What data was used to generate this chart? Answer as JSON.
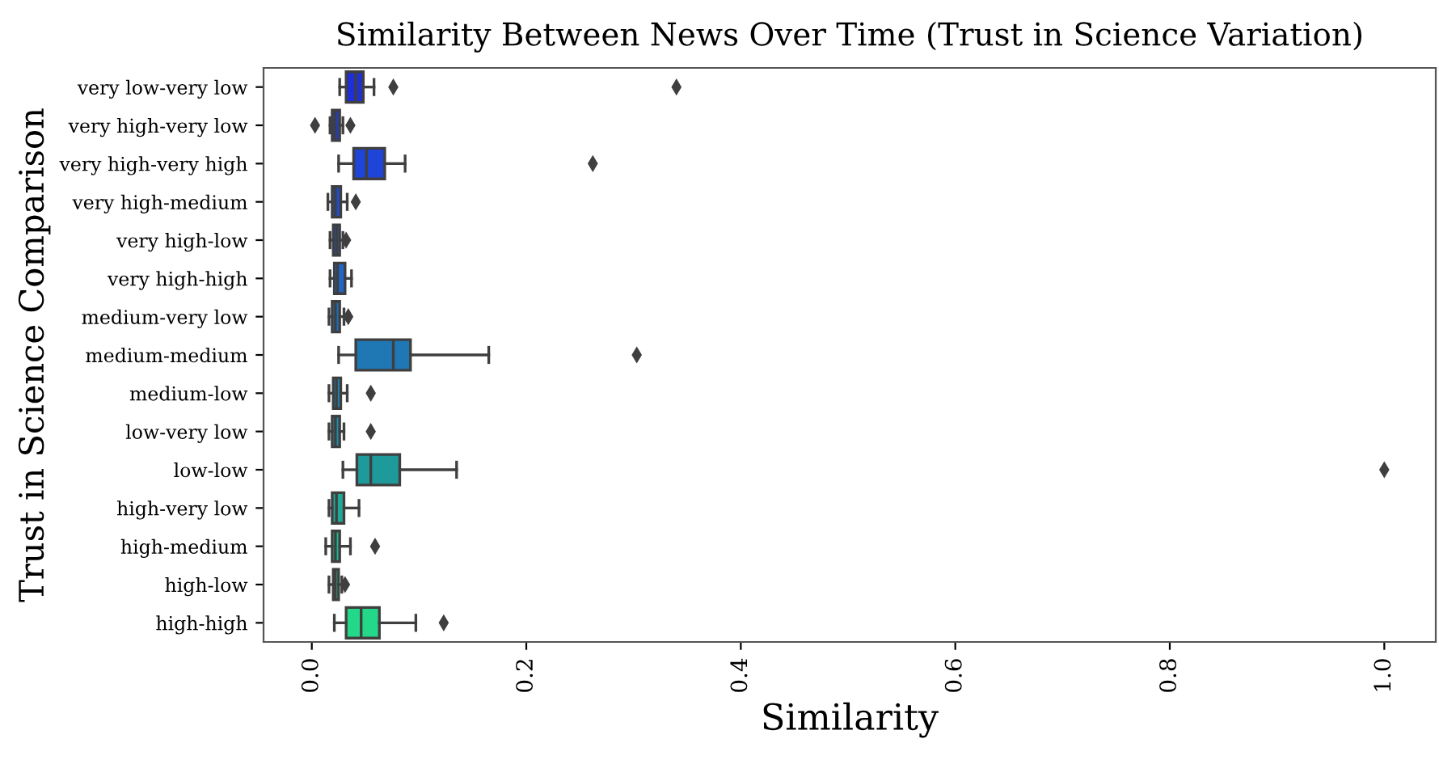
{
  "chart_data": {
    "type": "box",
    "title": "Similarity Between News Over Time (Trust in Science Variation)",
    "xlabel": "Similarity",
    "ylabel": "Trust in Science Comparison",
    "orientation": "horizontal",
    "categories": [
      "very low-very low",
      "very high-very low",
      "very high-very high",
      "very high-medium",
      "very high-low",
      "very high-high",
      "medium-very low",
      "medium-medium",
      "medium-low",
      "low-very low",
      "low-low",
      "high-very low",
      "high-medium",
      "high-low",
      "high-high"
    ],
    "boxes": [
      {
        "low": 0.026,
        "q1": 0.032,
        "median": 0.041,
        "q3": 0.048,
        "high": 0.058,
        "outliers": [
          0.076,
          0.34
        ]
      },
      {
        "low": 0.017,
        "q1": 0.019,
        "median": 0.022,
        "q3": 0.026,
        "high": 0.029,
        "outliers": [
          0.003,
          0.036
        ]
      },
      {
        "low": 0.025,
        "q1": 0.039,
        "median": 0.051,
        "q3": 0.068,
        "high": 0.087,
        "outliers": [
          0.262
        ]
      },
      {
        "low": 0.015,
        "q1": 0.019,
        "median": 0.022,
        "q3": 0.027,
        "high": 0.033,
        "outliers": [
          0.041
        ]
      },
      {
        "low": 0.017,
        "q1": 0.02,
        "median": 0.023,
        "q3": 0.026,
        "high": 0.029,
        "outliers": [
          0.032
        ]
      },
      {
        "low": 0.017,
        "q1": 0.021,
        "median": 0.024,
        "q3": 0.031,
        "high": 0.037
      },
      {
        "low": 0.016,
        "q1": 0.019,
        "median": 0.022,
        "q3": 0.026,
        "high": 0.03,
        "outliers": [
          0.034
        ]
      },
      {
        "low": 0.025,
        "q1": 0.041,
        "median": 0.076,
        "q3": 0.092,
        "high": 0.165,
        "outliers": [
          0.303
        ]
      },
      {
        "low": 0.016,
        "q1": 0.02,
        "median": 0.023,
        "q3": 0.027,
        "high": 0.033,
        "outliers": [
          0.055
        ]
      },
      {
        "low": 0.016,
        "q1": 0.019,
        "median": 0.022,
        "q3": 0.026,
        "high": 0.03,
        "outliers": [
          0.055
        ]
      },
      {
        "low": 0.029,
        "q1": 0.042,
        "median": 0.055,
        "q3": 0.082,
        "high": 0.135,
        "outliers": [
          1.0
        ]
      },
      {
        "low": 0.016,
        "q1": 0.019,
        "median": 0.023,
        "q3": 0.03,
        "high": 0.044
      },
      {
        "low": 0.013,
        "q1": 0.019,
        "median": 0.022,
        "q3": 0.026,
        "high": 0.036,
        "outliers": [
          0.059
        ]
      },
      {
        "low": 0.016,
        "q1": 0.02,
        "median": 0.022,
        "q3": 0.025,
        "high": 0.028,
        "outliers": [
          0.031
        ]
      },
      {
        "low": 0.021,
        "q1": 0.032,
        "median": 0.046,
        "q3": 0.063,
        "high": 0.097,
        "outliers": [
          0.123
        ]
      }
    ],
    "colors": [
      "#1f2fd6",
      "#1f3cd0",
      "#1f44d8",
      "#1f4ec6",
      "#1f58c4",
      "#1f66c8",
      "#1f70bf",
      "#1f78b4",
      "#1f84b0",
      "#1f8ea8",
      "#1f9a9a",
      "#1fa896",
      "#1fb890",
      "#1fc88a",
      "#24d88a"
    ],
    "xlim": [
      -0.045,
      1.048
    ],
    "xticks": [
      {
        "value": 0,
        "label": "0.0"
      },
      {
        "value": 0.2,
        "label": "0.2"
      },
      {
        "value": 0.4,
        "label": "0.4"
      },
      {
        "value": 0.6,
        "label": "0.6"
      },
      {
        "value": 0.8,
        "label": "0.8"
      },
      {
        "value": 1.0,
        "label": "1.0"
      }
    ],
    "marker": "diamond",
    "grid": false
  }
}
